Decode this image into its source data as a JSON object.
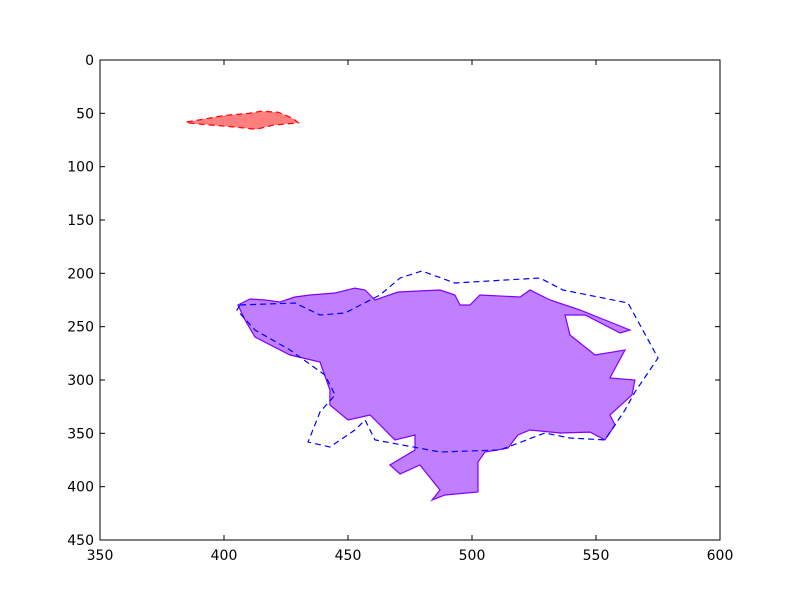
{
  "chart_data": {
    "type": "polygon",
    "xlim": [
      350,
      600
    ],
    "ylim": [
      450,
      0
    ],
    "xticks": [
      350,
      400,
      450,
      500,
      550,
      600
    ],
    "yticks": [
      0,
      50,
      100,
      150,
      200,
      250,
      300,
      350,
      400,
      450
    ],
    "series": [
      {
        "color": "#ff0000",
        "fill": true,
        "dashed": true,
        "x": [
          385,
          393,
          400,
          410,
          415,
          422,
          428,
          430,
          420,
          413,
          405,
          395,
          385
        ],
        "y": [
          58,
          55,
          52,
          50,
          48,
          49,
          55,
          59,
          61,
          65,
          63,
          61,
          59
        ]
      },
      {
        "color": "#8000ff",
        "fill": true,
        "dashed": false,
        "x": [
          405.6,
          410.5,
          416.5,
          422.6,
          428.6,
          434.7,
          444.8,
          452.8,
          456.9,
          460.9,
          470.2,
          487.1,
          493.1,
          495.2,
          499.2,
          503.2,
          519.4,
          523.4,
          531.5,
          543.5,
          551.6,
          563.7,
          559.7,
          545.6,
          537.5,
          539.5,
          549.6,
          561.7,
          555.6,
          565.7,
          564.5,
          555.6,
          557.7,
          553.6,
          547.6,
          535.5,
          523.4,
          518.5,
          514.5,
          505.2,
          502.4,
          502.4,
          489.1,
          483.9,
          487.1,
          479,
          471,
          466.9,
          477,
          477,
          468.9,
          458.9,
          450,
          442.7,
          442.7,
          438.7,
          426.6,
          412.5,
          408.5
        ],
        "y": [
          229.7,
          224.1,
          225,
          226.9,
          222.2,
          220.3,
          218.4,
          213.8,
          215.6,
          225,
          217.5,
          215.6,
          220.3,
          229.7,
          229.7,
          220.3,
          222.2,
          215.6,
          225,
          234.4,
          241.9,
          253.1,
          255.9,
          239.1,
          239.1,
          257.8,
          276.6,
          271.9,
          298.1,
          300,
          314.1,
          332.8,
          342.2,
          356.2,
          348.8,
          349.7,
          346.9,
          351.6,
          363.8,
          367.5,
          376.9,
          405,
          407.8,
          412.5,
          403.1,
          379.7,
          388.1,
          379.7,
          365.6,
          351.6,
          356.2,
          332.8,
          337.5,
          323.4,
          309.4,
          283.1,
          276.6,
          259.7,
          243.8
        ]
      },
      {
        "color": "#0000ff",
        "fill": false,
        "dashed": true,
        "x": [
          406.5,
          428.6,
          438.7,
          448.8,
          462.9,
          471,
          479.8,
          493.1,
          527.4,
          536.7,
          562.9,
          575,
          565.7,
          561.7,
          553.6,
          539.5,
          529.4,
          511.3,
          487.1,
          460.9,
          456.9,
          452.8,
          442.7,
          433.9,
          438.7,
          444.8,
          440.7,
          426.6,
          412.5,
          405.2
        ],
        "y": [
          229.7,
          227.8,
          239.1,
          237.2,
          220.3,
          204.4,
          197.8,
          209.1,
          204.4,
          215.6,
          227.8,
          279.4,
          311.3,
          328.1,
          356.2,
          354.4,
          349.7,
          365.6,
          367.5,
          356.2,
          337.5,
          346.9,
          362.8,
          358.1,
          330,
          314.1,
          295.3,
          271.9,
          253.1,
          234.4
        ]
      }
    ]
  }
}
